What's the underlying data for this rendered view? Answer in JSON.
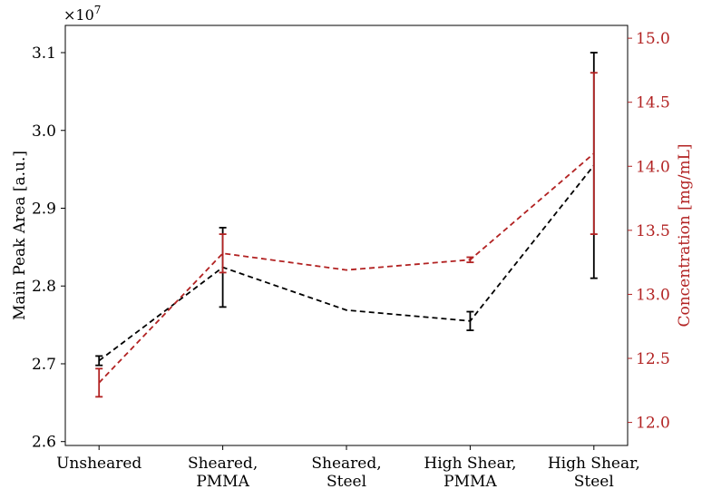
{
  "chart_data": {
    "type": "line",
    "categories": [
      [
        "Unsheared"
      ],
      [
        "Sheared,",
        "PMMA"
      ],
      [
        "Sheared,",
        "Steel"
      ],
      [
        "High Shear,",
        "PMMA"
      ],
      [
        "High Shear,",
        "Steel"
      ]
    ],
    "left_axis": {
      "label": "Main Peak Area [a.u.]",
      "multiplier": "×10",
      "multiplier_exp": "7",
      "ylim": [
        2.595,
        3.135
      ],
      "ticks": [
        2.6,
        2.7,
        2.8,
        2.9,
        3.0,
        3.1
      ],
      "tick_labels": [
        "2.6",
        "2.7",
        "2.8",
        "2.9",
        "3.0",
        "3.1"
      ],
      "color": "#000000"
    },
    "right_axis": {
      "label": "Concentration [mg/mL]",
      "ylim": [
        11.82,
        15.1
      ],
      "ticks": [
        12.0,
        12.5,
        13.0,
        13.5,
        14.0,
        14.5,
        15.0
      ],
      "tick_labels": [
        "12.0",
        "12.5",
        "13.0",
        "13.5",
        "14.0",
        "14.5",
        "15.0"
      ],
      "color": "#b22222"
    },
    "series": [
      {
        "axis": "left",
        "color": "#000000",
        "values": [
          2.704,
          2.824,
          2.769,
          2.755,
          2.955
        ],
        "errors": [
          0.006,
          0.051,
          0.0,
          0.012,
          0.145
        ]
      },
      {
        "axis": "right",
        "color": "#b22222",
        "values": [
          12.31,
          13.32,
          13.19,
          13.27,
          14.1
        ],
        "errors": [
          0.11,
          0.15,
          0.0,
          0.02,
          0.63
        ]
      }
    ]
  }
}
